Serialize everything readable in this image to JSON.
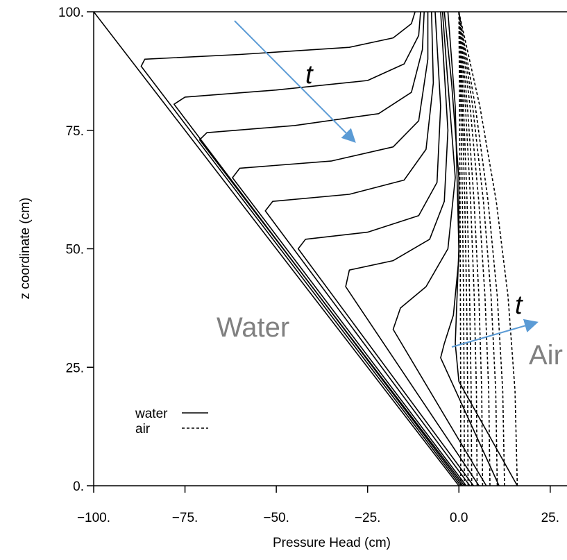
{
  "chart_data": {
    "type": "line",
    "xlabel": "Pressure Head (cm)",
    "ylabel": "z coordinate (cm)",
    "xlim": [
      -100,
      29.6
    ],
    "ylim": [
      0,
      100
    ],
    "xticks": [
      {
        "value": -100,
        "label": "−100."
      },
      {
        "value": -75,
        "label": "−75."
      },
      {
        "value": -50,
        "label": "−50."
      },
      {
        "value": -25,
        "label": "−25."
      },
      {
        "value": 0,
        "label": "0.0"
      },
      {
        "value": 25,
        "label": "25."
      }
    ],
    "yticks": [
      {
        "value": 0,
        "label": "0."
      },
      {
        "value": 25,
        "label": "25."
      },
      {
        "value": 50,
        "label": "50."
      },
      {
        "value": 75,
        "label": "75."
      },
      {
        "value": 100,
        "label": "100."
      }
    ],
    "annotations": [
      "t",
      "t",
      "Water",
      "Air"
    ],
    "series": [
      {
        "name": "water",
        "color": "#000000",
        "dash": false,
        "curves": [
          {
            "x": [
              -100,
              0
            ],
            "values": [
              100,
              0
            ]
          },
          {
            "x": [
              0.5,
              -87,
              -86,
              -60,
              -30,
              -18,
              -13,
              -12
            ],
            "values": [
              0,
              88.5,
              90,
              91,
              92.5,
              94.5,
              97.5,
              100
            ]
          },
          {
            "x": [
              1,
              -78,
              -75,
              -50,
              -25,
              -15,
              -11,
              -10.5
            ],
            "values": [
              0,
              80.5,
              82,
              83.5,
              85.5,
              89,
              95,
              100
            ]
          },
          {
            "x": [
              1.5,
              -71,
              -69,
              -45,
              -22,
              -13,
              -10,
              -9.5
            ],
            "values": [
              0,
              73,
              74.5,
              76,
              78.5,
              83,
              92,
              100
            ]
          },
          {
            "x": [
              2,
              -62,
              -60,
              -35,
              -18,
              -11,
              -8.5,
              -8.5
            ],
            "values": [
              0,
              65,
              67,
              68.5,
              71.5,
              77,
              90,
              100
            ]
          },
          {
            "x": [
              3,
              -53,
              -51,
              -30,
              -15,
              -9,
              -7,
              -7.5
            ],
            "values": [
              0,
              58,
              60,
              61.5,
              64.5,
              71,
              85,
              100
            ]
          },
          {
            "x": [
              4,
              -44,
              -42,
              -25,
              -11,
              -6,
              -5,
              -6.5
            ],
            "values": [
              0,
              50,
              52,
              53.5,
              57,
              64,
              80,
              100
            ]
          },
          {
            "x": [
              5.5,
              -31,
              -30,
              -18,
              -8,
              -4,
              -3,
              -5
            ],
            "values": [
              0,
              42,
              45.5,
              47.5,
              52,
              60,
              75,
              100
            ]
          },
          {
            "x": [
              7.5,
              -18,
              -16,
              -9,
              -3,
              -1,
              -3,
              -4.5
            ],
            "values": [
              0,
              33,
              37.5,
              42,
              50,
              65,
              85,
              100
            ]
          },
          {
            "x": [
              11,
              -5,
              -4,
              -1.5,
              0,
              0,
              -2,
              -4
            ],
            "values": [
              0,
              27,
              30,
              36,
              48,
              65,
              85,
              100
            ]
          },
          {
            "x": [
              16,
              0,
              -1,
              0,
              -1,
              -3
            ],
            "values": [
              0,
              22,
              30,
              50,
              80,
              100
            ]
          }
        ]
      },
      {
        "name": "air",
        "color": "#000000",
        "dash": true,
        "curves": [
          {
            "x": [
              0.5,
              0.48,
              0.42,
              0.32,
              0.18,
              0
            ],
            "values": [
              0,
              20,
              40,
              60,
              80,
              100
            ]
          },
          {
            "x": [
              1.5,
              1.44,
              1.26,
              0.96,
              0.54,
              0
            ],
            "values": [
              0,
              20,
              40,
              60,
              80,
              100
            ]
          },
          {
            "x": [
              2.5,
              2.4,
              2.1,
              1.6,
              0.9,
              0
            ],
            "values": [
              0,
              20,
              40,
              60,
              80,
              100
            ]
          },
          {
            "x": [
              3.5,
              3.36,
              2.94,
              2.24,
              1.26,
              0
            ],
            "values": [
              0,
              20,
              40,
              60,
              80,
              100
            ]
          },
          {
            "x": [
              5,
              4.8,
              4.2,
              3.2,
              1.8,
              0
            ],
            "values": [
              0,
              20,
              40,
              60,
              80,
              100
            ]
          },
          {
            "x": [
              6.5,
              6.24,
              5.46,
              4.16,
              2.34,
              0
            ],
            "values": [
              0,
              20,
              40,
              60,
              80,
              100
            ]
          },
          {
            "x": [
              8.5,
              8.16,
              7.14,
              5.44,
              3.06,
              0
            ],
            "values": [
              0,
              20,
              40,
              60,
              80,
              100
            ]
          },
          {
            "x": [
              10.5,
              10.08,
              8.82,
              6.72,
              3.78,
              0
            ],
            "values": [
              0,
              20,
              40,
              60,
              80,
              100
            ]
          },
          {
            "x": [
              12.5,
              12,
              10.5,
              8,
              4.5,
              0
            ],
            "values": [
              0,
              20,
              40,
              60,
              80,
              100
            ]
          },
          {
            "x": [
              16,
              15.36,
              13.44,
              10.24,
              5.76,
              0
            ],
            "values": [
              0,
              20,
              40,
              60,
              80,
              100
            ]
          }
        ]
      }
    ]
  }
}
